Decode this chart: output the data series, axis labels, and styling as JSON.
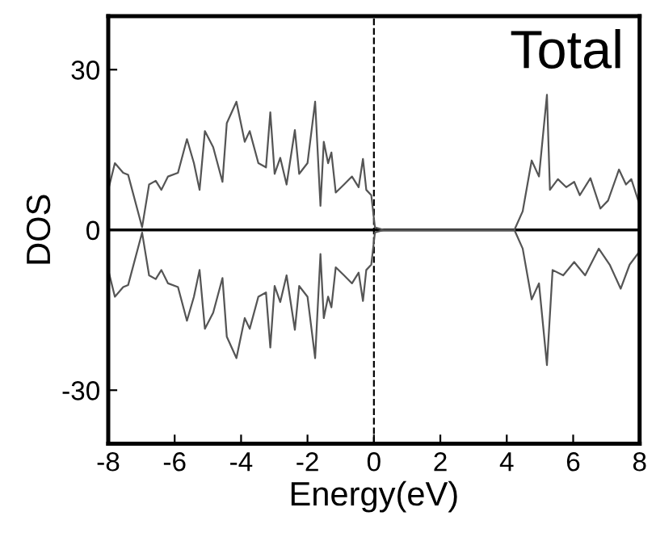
{
  "chart_data": {
    "type": "line",
    "xlabel": "Energy(eV)",
    "ylabel": "DOS",
    "annotations": [
      "Total"
    ],
    "xlim": [
      -8,
      8
    ],
    "ylim": [
      -40,
      40
    ],
    "xticks": [
      -8,
      -6,
      -4,
      -2,
      0,
      2,
      4,
      6,
      8
    ],
    "yticks": [
      -30,
      0,
      30
    ],
    "grid": false,
    "legend": false,
    "marker": "none",
    "line_style": "solid",
    "ref_lines": [
      {
        "axis": "y",
        "value": 0,
        "color": "#000000",
        "line_style": "solid"
      },
      {
        "axis": "x",
        "value": 0,
        "color": "#000000",
        "line_style": "dashed"
      }
    ],
    "series": [
      {
        "color": "#555555",
        "x": [
          -8,
          -7.8,
          -7.55,
          -7.4,
          -6.98,
          -6.77,
          -6.57,
          -6.4,
          -6.2,
          -5.9,
          -5.63,
          -5.42,
          -5.25,
          -5.09,
          -4.84,
          -4.56,
          -4.43,
          -4.14,
          -3.89,
          -3.74,
          -3.48,
          -3.25,
          -3.12,
          -2.99,
          -2.82,
          -2.63,
          -2.38,
          -2.25,
          -2.0,
          -1.77,
          -1.61,
          -1.51,
          -1.38,
          -1.28,
          -1.15,
          -0.9,
          -0.66,
          -0.46,
          -0.33,
          -0.23,
          -0.08,
          0.03,
          0.3,
          4.0,
          4.23,
          4.48,
          4.75,
          4.97,
          5.21,
          5.3,
          5.54,
          5.79,
          6.03,
          6.2,
          6.52,
          6.82,
          7.05,
          7.38,
          7.59,
          7.75,
          8.0
        ],
        "values": [
          7.5,
          12.5,
          10.7,
          10.3,
          0.5,
          8.5,
          9.2,
          7.5,
          10,
          10.7,
          17,
          12.5,
          7.5,
          18.5,
          15.5,
          9,
          20,
          24,
          16.5,
          18.5,
          12.5,
          11.7,
          22,
          10.5,
          13.5,
          8.5,
          18.7,
          10.5,
          12.5,
          24,
          4.5,
          16.5,
          12.5,
          14.5,
          7,
          8.5,
          10,
          8,
          13.3,
          7.5,
          6.5,
          0.5,
          0,
          0,
          0,
          3.5,
          13,
          10,
          25.3,
          7.5,
          9.5,
          8,
          9,
          6.5,
          9.7,
          4,
          5.5,
          11.3,
          8.5,
          9.5,
          4.7
        ]
      },
      {
        "color": "#555555",
        "x": [
          -8,
          -7.8,
          -7.55,
          -7.4,
          -6.98,
          -6.77,
          -6.57,
          -6.4,
          -6.2,
          -5.9,
          -5.63,
          -5.42,
          -5.25,
          -5.09,
          -4.84,
          -4.56,
          -4.43,
          -4.14,
          -3.89,
          -3.74,
          -3.48,
          -3.25,
          -3.12,
          -2.99,
          -2.82,
          -2.63,
          -2.38,
          -2.25,
          -2.0,
          -1.77,
          -1.61,
          -1.51,
          -1.38,
          -1.28,
          -1.15,
          -0.9,
          -0.66,
          -0.46,
          -0.33,
          -0.23,
          -0.08,
          0.03,
          0.3,
          4.0,
          4.23,
          4.48,
          4.75,
          4.97,
          5.21,
          5.38,
          5.7,
          6.03,
          6.36,
          6.77,
          7.1,
          7.43,
          7.7,
          8.0
        ],
        "values": [
          -7.5,
          -12.5,
          -10.7,
          -10.3,
          -0.5,
          -8.5,
          -9.2,
          -7.5,
          -10,
          -10.7,
          -17,
          -12.5,
          -7.5,
          -18.5,
          -15.5,
          -9,
          -20,
          -24,
          -16.5,
          -18.5,
          -12.5,
          -11.7,
          -22,
          -10.5,
          -13.5,
          -8.5,
          -18.7,
          -10.5,
          -12.5,
          -24,
          -4.5,
          -16.5,
          -12.5,
          -14.5,
          -7,
          -8.5,
          -10,
          -8,
          -13.3,
          -7.5,
          -6.5,
          -0.5,
          0,
          0,
          0,
          -3.5,
          -13,
          -10,
          -25.3,
          -7.5,
          -8.5,
          -6,
          -8.5,
          -3.5,
          -6.5,
          -11,
          -6.5,
          -4
        ]
      }
    ]
  }
}
